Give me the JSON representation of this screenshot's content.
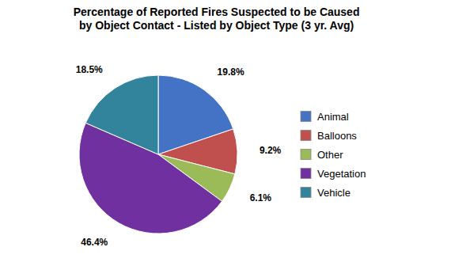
{
  "chart_data": {
    "type": "pie",
    "title": "Percentage of Reported Fires Suspected to be Caused\nby Object Contact - Listed by Object Type (3 yr. Avg)",
    "categories": [
      "Animal",
      "Balloons",
      "Other",
      "Vegetation",
      "Vehicle"
    ],
    "values": [
      19.8,
      9.2,
      6.1,
      46.4,
      18.5
    ],
    "value_labels": [
      "19.8%",
      "9.2%",
      "6.1%",
      "46.4%",
      "18.5%"
    ],
    "colors": [
      "#4472C4",
      "#C0504D",
      "#9BBB59",
      "#7030A0",
      "#31849B"
    ],
    "data_labels": true,
    "legend": "right"
  }
}
